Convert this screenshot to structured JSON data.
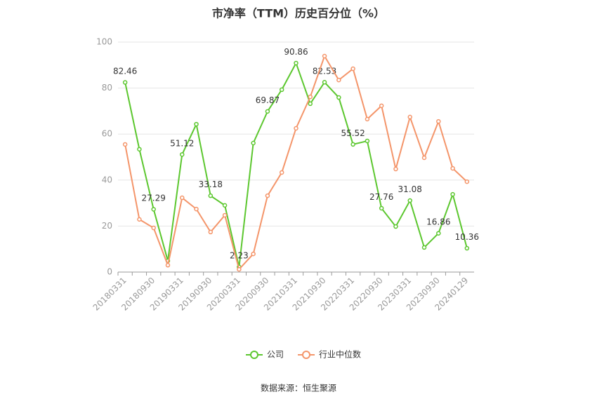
{
  "chart_data": {
    "type": "line",
    "title": "市净率（TTM）历史百分位（%）",
    "source": "数据来源：恒生聚源",
    "categories": [
      "20180331",
      null,
      "20180930",
      null,
      "20190331",
      null,
      "20190930",
      null,
      "20200331",
      null,
      "20200930",
      null,
      "20210331",
      null,
      "20210930",
      null,
      "20220331",
      null,
      "20220930",
      null,
      "20230331",
      null,
      "20230930",
      null,
      "20240129"
    ],
    "series": [
      {
        "name": "公司",
        "color": "#5cc72f",
        "values": [
          82.46,
          53.4,
          27.29,
          4.9,
          51.12,
          64.3,
          33.18,
          29.0,
          2.23,
          56.1,
          69.87,
          79.3,
          90.86,
          73.2,
          82.53,
          75.9,
          55.52,
          57.0,
          27.76,
          19.8,
          31.08,
          10.7,
          16.86,
          33.8,
          10.36
        ],
        "value_labels": [
          "82.46",
          null,
          "27.29",
          null,
          "51.12",
          null,
          "33.18",
          null,
          "2.23",
          null,
          "69.87",
          null,
          "90.86",
          null,
          "82.53",
          null,
          "55.52",
          null,
          "27.76",
          null,
          "31.08",
          null,
          "16.86",
          null,
          "10.36"
        ]
      },
      {
        "name": "行业中位数",
        "color": "#f4956a",
        "values": [
          55.5,
          22.9,
          19.2,
          3.0,
          32.3,
          27.4,
          17.4,
          24.7,
          1.2,
          7.9,
          33.2,
          43.3,
          62.5,
          76.2,
          93.9,
          83.5,
          88.4,
          66.5,
          72.3,
          44.8,
          67.4,
          49.7,
          65.5,
          45.1,
          39.3
        ]
      }
    ],
    "ylim": [
      0,
      100
    ],
    "yticks": [
      0,
      20,
      40,
      60,
      80,
      100
    ],
    "grid": true
  }
}
